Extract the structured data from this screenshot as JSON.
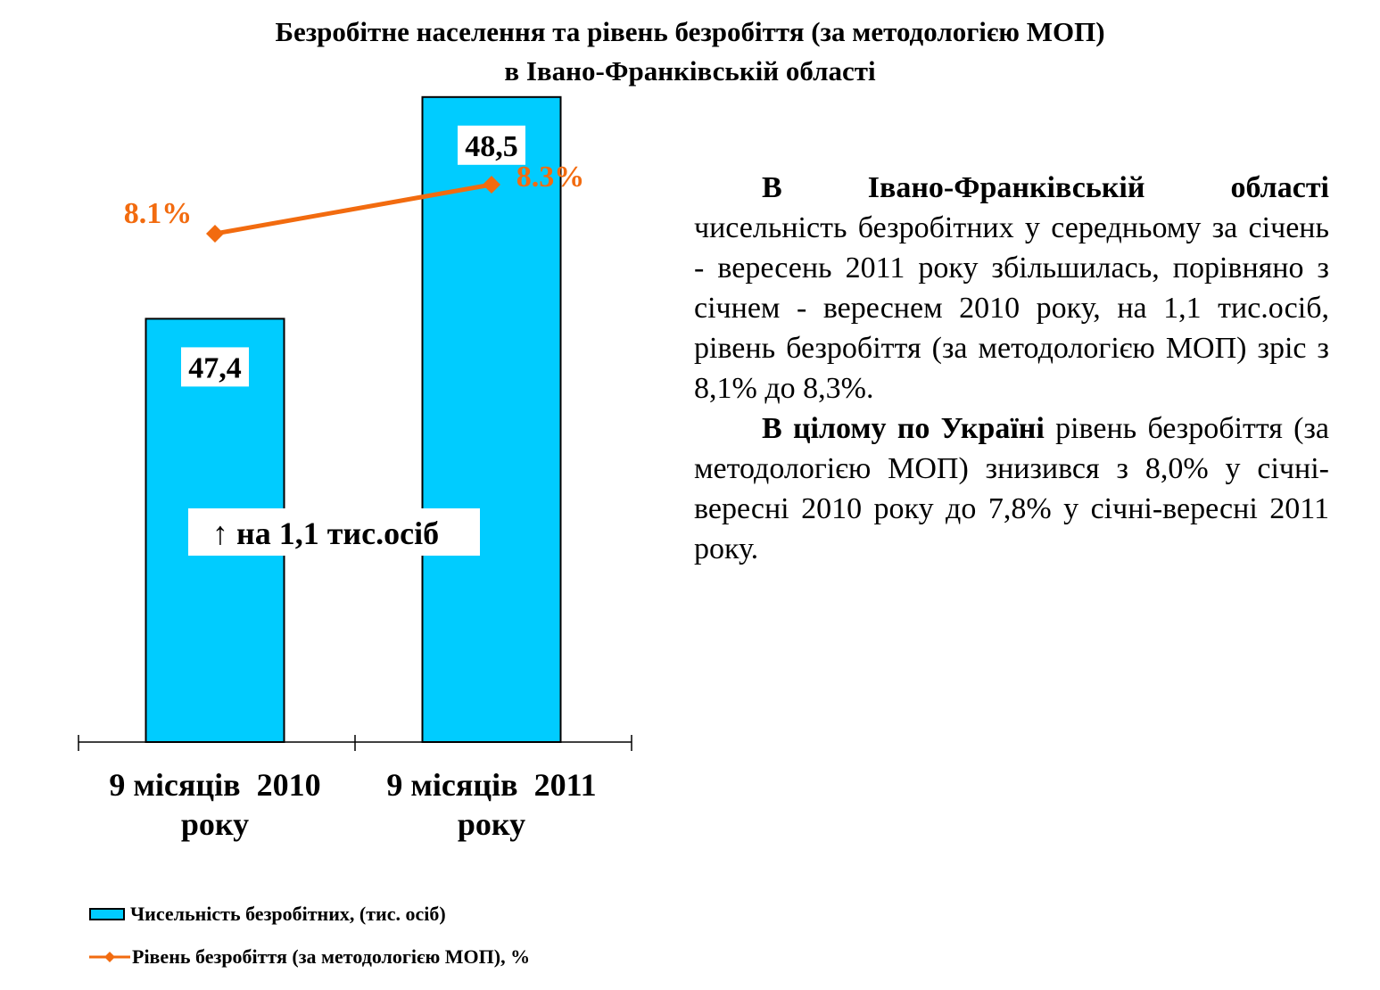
{
  "title": {
    "line1": "Безробітне населення та рівень безробіття (за методологією МОП)",
    "line2": "в Івано-Франківській області"
  },
  "chart_data": {
    "type": "bar",
    "categories_lines": [
      [
        "9 місяців  2010",
        "року"
      ],
      [
        "9 місяців  2011",
        "року"
      ]
    ],
    "categories": [
      "9 місяців  2010 року",
      "9 місяців  2011 року"
    ],
    "series": [
      {
        "name": "Чисельність безробітних, (тис. осіб)",
        "type": "bar",
        "values": [
          47.4,
          48.5
        ],
        "labels": [
          "47,4",
          "48,5"
        ],
        "color": "#00CCFF"
      },
      {
        "name": "Рівень безробіття (за методологією МОП), %",
        "type": "line",
        "values": [
          8.1,
          8.3
        ],
        "labels": [
          "8.1%",
          "8.3%"
        ],
        "color": "#F26B0F"
      }
    ],
    "annotation": "↑ на 1,1 тис.осіб",
    "legend_position": "bottom-left"
  },
  "text": {
    "p1_bold": "В Івано-Франківській області",
    "p1_rest": "чисельність безробітних у  середньому за січень - вересень  2011  року  збільшилась, порівняно  з січнем - вереснем 2010 року, на 1,1 тис.осіб, рівень безробіття (за методологією  МОП) зріс з 8,1% до 8,3%.",
    "p2_bold": "В цілому по Україні",
    "p2_rest": "рівень безробіття (за методологією МОП) знизився з 8,0% у січні-вересні 2010 року до  7,8%  у  січні-вересні 2011 року."
  }
}
